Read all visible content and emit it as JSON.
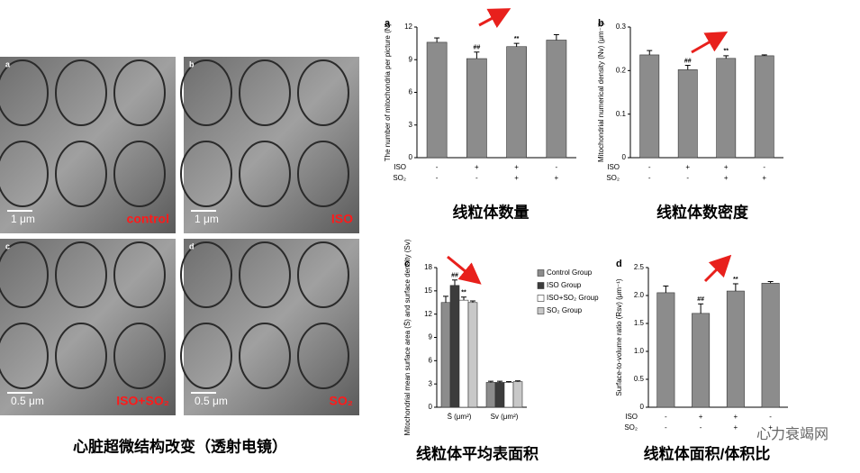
{
  "chart_data": [
    {
      "type": "bar",
      "panel": "a",
      "title": "线粒体数量",
      "ylabel": "The number of mitochondria per picture (N)",
      "categories": [
        null,
        null,
        null,
        null
      ],
      "values": [
        10.6,
        9.1,
        10.2,
        10.8
      ],
      "errors": [
        0.4,
        0.6,
        0.3,
        0.5
      ],
      "annotations": [
        null,
        "##",
        "**",
        null
      ],
      "color": "#8c8c8c",
      "rows": [
        {
          "label": "ISO",
          "marks": [
            "-",
            "+",
            "+",
            "-"
          ]
        },
        {
          "label": "SO₂",
          "marks": [
            "-",
            "-",
            "+",
            "+"
          ]
        }
      ],
      "ylim": [
        0,
        12
      ],
      "yticks": [
        0,
        3,
        6,
        9,
        12
      ]
    },
    {
      "type": "bar",
      "panel": "b",
      "title": "线粒体数密度",
      "ylabel": "Mitochondrial numerical density (Nv) (μm⁻³)",
      "categories": [
        null,
        null,
        null,
        null
      ],
      "values": [
        0.236,
        0.202,
        0.228,
        0.234
      ],
      "errors": [
        0.01,
        0.01,
        0.006,
        0.002
      ],
      "annotations": [
        null,
        "##",
        "**",
        null
      ],
      "color": "#8c8c8c",
      "rows": [
        {
          "label": "ISO",
          "marks": [
            "-",
            "+",
            "+",
            "-"
          ]
        },
        {
          "label": "SO₂",
          "marks": [
            "-",
            "-",
            "+",
            "+"
          ]
        }
      ],
      "ylim": [
        0,
        0.3
      ],
      "yticks": [
        0,
        0.1,
        0.2,
        0.3
      ]
    },
    {
      "type": "grouped-bar",
      "panel": "c",
      "title": "线粒体平均表面积",
      "ylabel": "Mitochondrial mean surface area (S̄) and surface density (Sv)",
      "categories": [
        "S̄ (μm²)",
        "Sv (μm²)"
      ],
      "series": [
        {
          "name": "Control Group",
          "color": "#8c8c8c",
          "values": [
            13.5,
            3.2
          ],
          "errors": [
            0.8,
            0.15
          ],
          "annotations": [
            null,
            null
          ]
        },
        {
          "name": "ISO Group",
          "color": "#3c3c3c",
          "values": [
            15.7,
            3.2
          ],
          "errors": [
            0.7,
            0.15
          ],
          "annotations": [
            "##",
            null
          ]
        },
        {
          "name": "ISO+SO₂ Group",
          "color": "#ffffff",
          "values": [
            13.8,
            3.2
          ],
          "errors": [
            0.4,
            0.1
          ],
          "annotations": [
            "**",
            null
          ]
        },
        {
          "name": "SO₂ Group",
          "color": "#c8c8c8",
          "values": [
            13.5,
            3.3
          ],
          "errors": [
            0.2,
            0.1
          ],
          "annotations": [
            null,
            null
          ]
        }
      ],
      "ylim": [
        0,
        18
      ],
      "yticks": [
        0,
        3,
        6,
        9,
        12,
        15,
        18
      ]
    },
    {
      "type": "bar",
      "panel": "d",
      "title": "线粒体面积/体积比",
      "ylabel": "Surface-to-volume ratio (Rsv) (μm⁻¹)",
      "categories": [
        null,
        null,
        null,
        null
      ],
      "values": [
        2.05,
        1.68,
        2.08,
        2.22
      ],
      "errors": [
        0.12,
        0.17,
        0.13,
        0.03
      ],
      "annotations": [
        null,
        "##",
        "**",
        null
      ],
      "color": "#8c8c8c",
      "rows": [
        {
          "label": "ISO",
          "marks": [
            "-",
            "+",
            "+",
            "-"
          ]
        },
        {
          "label": "SO₂",
          "marks": [
            "-",
            "-",
            "+",
            "+"
          ]
        }
      ],
      "ylim": [
        0,
        2.5
      ],
      "yticks": [
        0,
        0.5,
        {
          "value": 1,
          "label": "1.0"
        },
        1.5,
        {
          "value": 2,
          "label": "2.0"
        },
        2.5
      ]
    }
  ],
  "micrographs": [
    {
      "panel": "a",
      "scale": "1 μm",
      "label": "control"
    },
    {
      "panel": "b",
      "scale": "1 μm",
      "label": "ISO"
    },
    {
      "panel": "c",
      "scale": "0.5 μm",
      "label": "ISO+SO₂"
    },
    {
      "panel": "d",
      "scale": "0.5 μm",
      "label": "SO₂"
    }
  ],
  "caption": "心脏超微结构改变（透射电镜）",
  "watermark": "心力衰竭网"
}
